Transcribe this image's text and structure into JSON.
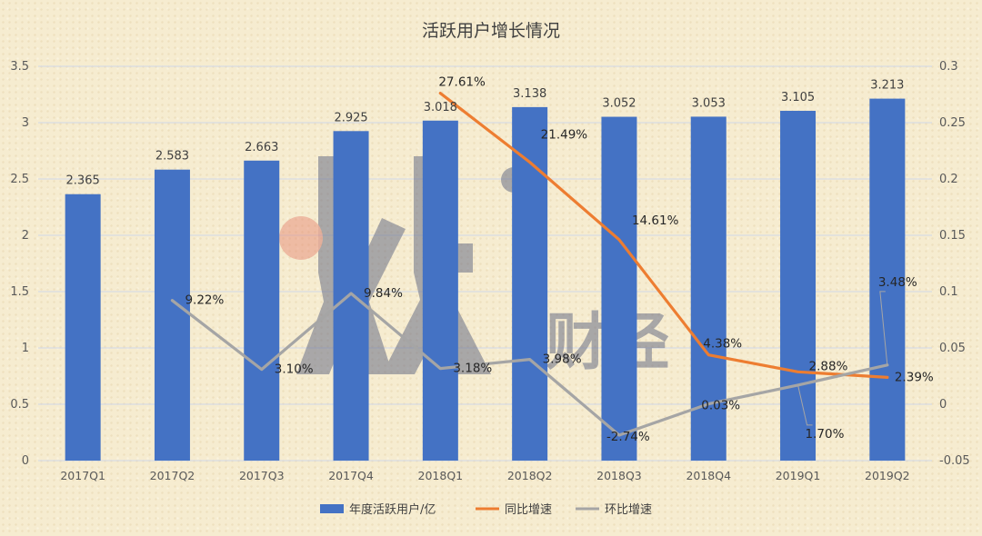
{
  "chart_data": {
    "type": "bar",
    "title": "活跃用户增长情况",
    "categories": [
      "2017Q1",
      "2017Q2",
      "2017Q3",
      "2017Q4",
      "2018Q1",
      "2018Q2",
      "2018Q3",
      "2018Q4",
      "2019Q1",
      "2019Q2"
    ],
    "series": [
      {
        "name": "年度活跃用户/亿",
        "type": "bar",
        "axis": "left",
        "color": "#4472c4",
        "values": [
          2.365,
          2.583,
          2.663,
          2.925,
          3.018,
          3.138,
          3.052,
          3.053,
          3.105,
          3.213
        ],
        "labels": [
          "2.365",
          "2.583",
          "2.663",
          "2.925",
          "3.018",
          "3.138",
          "3.052",
          "3.053",
          "3.105",
          "3.213"
        ]
      },
      {
        "name": "同比增速",
        "type": "line",
        "axis": "right",
        "color": "#ed7d31",
        "values": [
          null,
          null,
          null,
          null,
          0.2761,
          0.2149,
          0.1461,
          0.0438,
          0.0288,
          0.0239
        ],
        "labels": [
          null,
          null,
          null,
          null,
          "27.61%",
          "21.49%",
          "14.61%",
          "4.38%",
          "2.88%",
          "2.39%"
        ]
      },
      {
        "name": "环比增速",
        "type": "line",
        "axis": "right",
        "color": "#a5a5a5",
        "values": [
          null,
          0.0922,
          0.031,
          0.0984,
          0.0318,
          0.0398,
          -0.0274,
          0.0003,
          0.017,
          0.0348
        ],
        "labels": [
          null,
          "9.22%",
          "3.10%",
          "9.84%",
          "3.18%",
          "3.98%",
          "-2.74%",
          "0.03%",
          "1.70%",
          "3.48%"
        ]
      }
    ],
    "y_left": {
      "min": 0,
      "max": 3.5,
      "ticks": [
        "0",
        "0.5",
        "1",
        "1.5",
        "2",
        "2.5",
        "3",
        "3.5"
      ]
    },
    "y_right": {
      "min": -0.05,
      "max": 0.3,
      "ticks": [
        "-0.05",
        "0",
        "0.05",
        "0.1",
        "0.15",
        "0.2",
        "0.25",
        "0.3"
      ]
    },
    "grid": true,
    "legend": "bottom"
  },
  "watermark": {
    "text": "财经"
  }
}
